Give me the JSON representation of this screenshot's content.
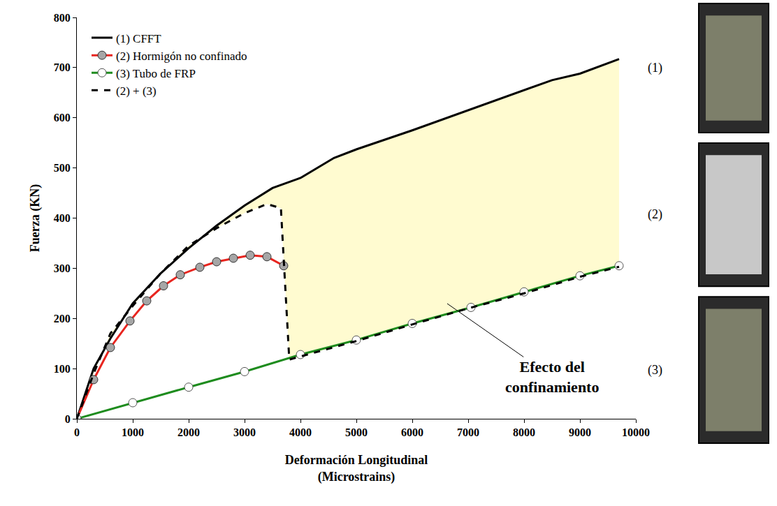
{
  "chart_data": {
    "type": "line",
    "x_label": "Deformación Longitudinal (Microstrains)",
    "y_label": "Fuerza (KN)",
    "xlim": [
      0,
      10000
    ],
    "xticks": [
      0,
      1000,
      2000,
      3000,
      4000,
      5000,
      6000,
      7000,
      8000,
      9000,
      10000
    ],
    "ylim": [
      0,
      800
    ],
    "yticks": [
      0,
      100,
      200,
      300,
      400,
      500,
      600,
      700,
      800
    ],
    "grid": false,
    "legend": "top-left",
    "series": [
      {
        "name": "(1) CFFT",
        "color": "#000000",
        "line_style": "solid",
        "marker": "none",
        "x": [
          0,
          300,
          600,
          1000,
          1500,
          2000,
          2500,
          3000,
          3500,
          4000,
          4600,
          5000,
          6000,
          7000,
          8000,
          8500,
          9000,
          9700
        ],
        "values": [
          0,
          100,
          160,
          230,
          290,
          340,
          385,
          425,
          460,
          480,
          520,
          537,
          575,
          615,
          655,
          675,
          688,
          717
        ]
      },
      {
        "name": "(2) Hormigón no confinado",
        "color": "#e8251f",
        "line_style": "solid",
        "marker": "circle",
        "x": [
          0,
          300,
          600,
          950,
          1250,
          1550,
          1850,
          2200,
          2500,
          2800,
          3100,
          3400,
          3700
        ],
        "values": [
          0,
          78,
          142,
          195,
          235,
          265,
          287,
          302,
          313,
          320,
          326,
          323,
          305
        ]
      },
      {
        "name": "(3) Tubo de FRP",
        "color": "#1e8c1e",
        "line_style": "solid",
        "marker": "circle-open",
        "x": [
          0,
          1000,
          2000,
          3000,
          4000,
          5000,
          6000,
          7050,
          8000,
          9000,
          9700
        ],
        "values": [
          0,
          32,
          63,
          94,
          128,
          157,
          190,
          222,
          253,
          285,
          305
        ]
      },
      {
        "name": "(2) + (3)",
        "color": "#000000",
        "line_style": "dash",
        "marker": "none",
        "x": [
          0,
          300,
          600,
          1000,
          1500,
          2000,
          2500,
          3000,
          3400,
          3650,
          3800,
          5000,
          6000,
          7000,
          8000,
          9000,
          9700
        ],
        "values": [
          0,
          90,
          170,
          225,
          290,
          345,
          380,
          410,
          428,
          420,
          118,
          155,
          188,
          220,
          250,
          283,
          303
        ]
      }
    ],
    "annotations": [
      "Efecto del confinamiento"
    ],
    "photo_labels": [
      "(1)",
      "(2)",
      "(3)"
    ]
  }
}
